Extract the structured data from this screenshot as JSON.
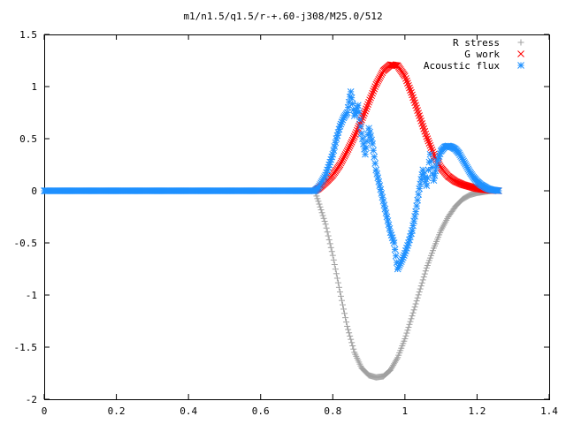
{
  "chart_data": {
    "type": "scatter",
    "title": "m1/n1.5/q1.5/r-+.60-j308/M25.0/512",
    "xlabel": "",
    "ylabel": "",
    "xlim": [
      0,
      1.4
    ],
    "ylim": [
      -2,
      1.5
    ],
    "grid": false,
    "legend_position": "top-right",
    "x_ticks": [
      "0",
      "0.2",
      "0.4",
      "0.6",
      "0.8",
      "1",
      "1.2",
      "1.4"
    ],
    "y_ticks": [
      "1.5",
      "1",
      "0.5",
      "0",
      "-0.5",
      "-1",
      "-1.5",
      "-2"
    ],
    "series": [
      {
        "name": "R stress",
        "marker": "plus",
        "color": "#a0a0a0",
        "x": [
          0,
          0.75,
          0.76,
          0.78,
          0.8,
          0.82,
          0.84,
          0.86,
          0.88,
          0.9,
          0.92,
          0.94,
          0.96,
          0.98,
          1.0,
          1.02,
          1.04,
          1.06,
          1.08,
          1.1,
          1.12,
          1.14,
          1.16,
          1.18,
          1.2,
          1.22,
          1.24,
          1.26
        ],
        "y": [
          0,
          0,
          -0.1,
          -0.32,
          -0.62,
          -0.97,
          -1.3,
          -1.55,
          -1.7,
          -1.77,
          -1.79,
          -1.78,
          -1.72,
          -1.6,
          -1.42,
          -1.2,
          -0.97,
          -0.74,
          -0.55,
          -0.38,
          -0.25,
          -0.15,
          -0.08,
          -0.04,
          -0.02,
          -0.01,
          0,
          0
        ]
      },
      {
        "name": "G work",
        "marker": "cross",
        "color": "#ff0000",
        "x": [
          0.75,
          0.76,
          0.78,
          0.8,
          0.82,
          0.84,
          0.86,
          0.88,
          0.9,
          0.92,
          0.94,
          0.96,
          0.98,
          1.0,
          1.02,
          1.04,
          1.06,
          1.08,
          1.1,
          1.12,
          1.14,
          1.16,
          1.18,
          1.2,
          1.22,
          1.24,
          1.26
        ],
        "y": [
          0,
          0.02,
          0.08,
          0.15,
          0.25,
          0.38,
          0.52,
          0.68,
          0.85,
          1.02,
          1.15,
          1.21,
          1.2,
          1.1,
          0.92,
          0.72,
          0.52,
          0.35,
          0.22,
          0.14,
          0.09,
          0.06,
          0.04,
          0.02,
          0.01,
          0.005,
          0
        ]
      },
      {
        "name": "Acoustic flux",
        "marker": "star",
        "color": "#1e90ff",
        "x": [
          0,
          0.75,
          0.76,
          0.78,
          0.8,
          0.81,
          0.82,
          0.83,
          0.84,
          0.85,
          0.86,
          0.87,
          0.88,
          0.89,
          0.9,
          0.91,
          0.92,
          0.93,
          0.94,
          0.95,
          0.96,
          0.97,
          0.98,
          0.99,
          1.0,
          1.01,
          1.02,
          1.03,
          1.04,
          1.05,
          1.06,
          1.07,
          1.08,
          1.09,
          1.1,
          1.11,
          1.12,
          1.13,
          1.14,
          1.15,
          1.16,
          1.17,
          1.18,
          1.19,
          1.2,
          1.21,
          1.22,
          1.23,
          1.24,
          1.25,
          1.26
        ],
        "y": [
          0,
          0,
          0.03,
          0.15,
          0.35,
          0.5,
          0.62,
          0.7,
          0.75,
          0.95,
          0.72,
          0.82,
          0.55,
          0.35,
          0.6,
          0.45,
          0.2,
          0.05,
          -0.1,
          -0.25,
          -0.4,
          -0.5,
          -0.75,
          -0.68,
          -0.6,
          -0.5,
          -0.38,
          -0.2,
          0.02,
          0.2,
          0.05,
          0.35,
          0.1,
          0.28,
          0.38,
          0.42,
          0.43,
          0.42,
          0.4,
          0.36,
          0.3,
          0.24,
          0.18,
          0.13,
          0.09,
          0.06,
          0.04,
          0.02,
          0.01,
          0.005,
          0
        ]
      }
    ]
  }
}
